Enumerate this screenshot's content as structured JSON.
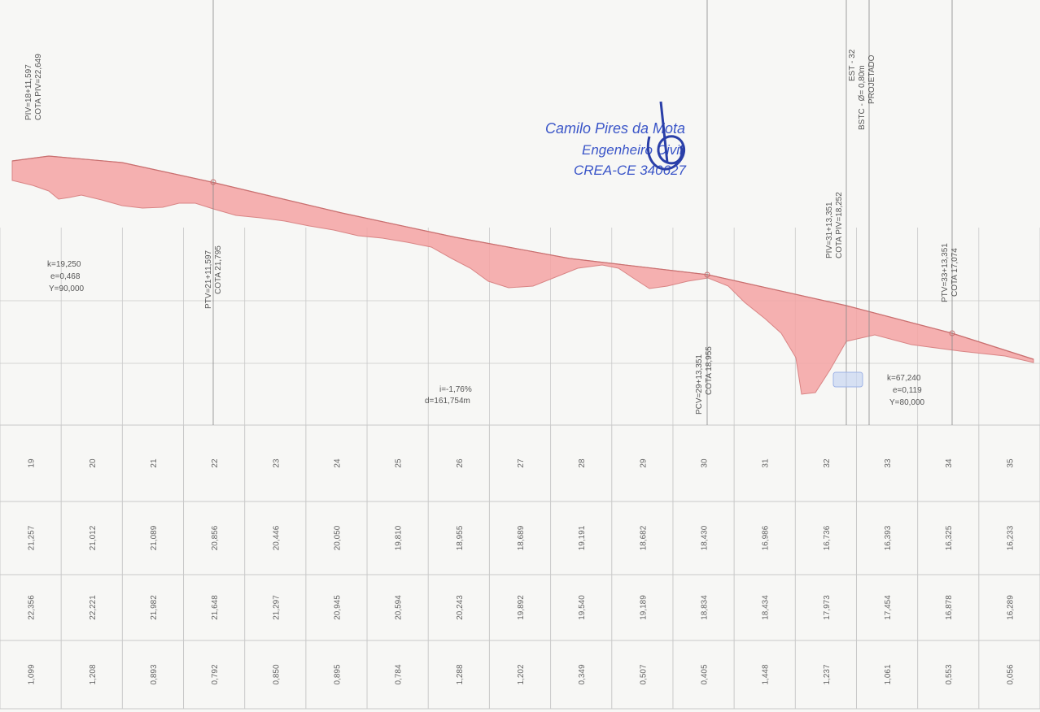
{
  "annotations": {
    "piv_start": [
      "PIV=18+11,597",
      "COTA PIV=22,649"
    ],
    "ptv_21": [
      "PTV=21+11,597",
      "COTA 21,795"
    ],
    "curve_1": [
      "k=19,250",
      "e=0,468",
      "Y=90,000"
    ],
    "slope": [
      "i=-1,76%",
      "d=161,754m"
    ],
    "pcv_29": [
      "PCV=29+13,351",
      "COTA 18,955"
    ],
    "piv_31": [
      "PIV=31+13,351",
      "COTA PIV=18,252"
    ],
    "est_32": [
      "EST - 32",
      "BSTC - Ø= 0,80m",
      "PROJETADO"
    ],
    "ptv_33": [
      "PTV=33+13,351",
      "COTA 17,074"
    ],
    "curve_2": [
      "k=67,240",
      "e=0,119",
      "Y=80,000"
    ]
  },
  "stamp": {
    "name": "Camilo Pires da Mota",
    "title": "Engenheiro Civil",
    "registry": "CREA-CE 340627"
  },
  "table": {
    "stations": [
      "19",
      "20",
      "21",
      "22",
      "23",
      "24",
      "25",
      "26",
      "27",
      "28",
      "29",
      "30",
      "31",
      "32",
      "33",
      "34",
      "35"
    ],
    "terrain": [
      "21,257",
      "21,012",
      "21,089",
      "20,856",
      "20,446",
      "20,050",
      "19,810",
      "18,955",
      "18,689",
      "19,191",
      "18,682",
      "18,430",
      "16,986",
      "16,736",
      "16,393",
      "16,325",
      "16,233"
    ],
    "grade": [
      "22,356",
      "22,221",
      "21,982",
      "21,648",
      "21,297",
      "20,945",
      "20,594",
      "20,243",
      "19,892",
      "19,540",
      "19,189",
      "18,834",
      "18,434",
      "17,973",
      "17,454",
      "16,878",
      "16,289"
    ],
    "depth": [
      "1,099",
      "1,208",
      "0,893",
      "0,792",
      "0,850",
      "0,895",
      "0,784",
      "1,288",
      "1,202",
      "0,349",
      "0,507",
      "0,405",
      "1,448",
      "1,237",
      "1,061",
      "0,553",
      "0,056"
    ]
  },
  "colors": {
    "fill": "#f4a3a3",
    "line": "#d98585",
    "grid": "#c9c9c9",
    "stamp": "#3a55c8"
  }
}
